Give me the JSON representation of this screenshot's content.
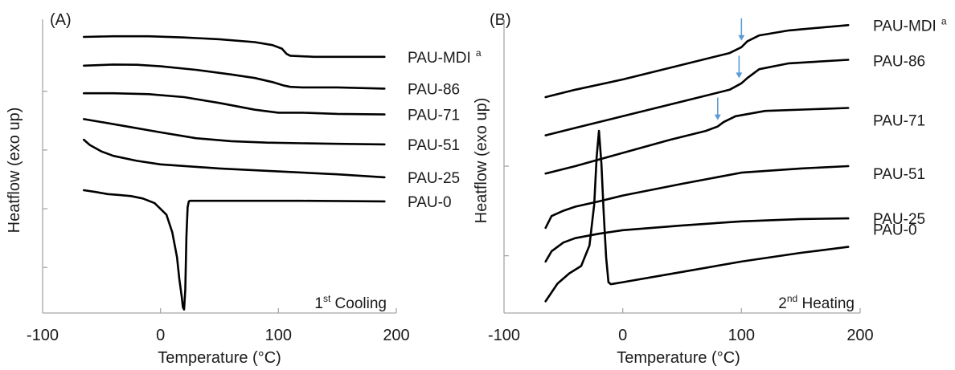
{
  "chart_data": [
    {
      "type": "line",
      "panel_label": "(A)",
      "xlabel": "Temperature (°C)",
      "ylabel": "Heatflow (exo up)",
      "xlim": [
        -100,
        200
      ],
      "xticks": [
        "-100",
        "0",
        "100",
        "200"
      ],
      "ylim": [
        0,
        10
      ],
      "y_ticks_unlabeled": [
        1.55,
        3.55,
        5.55,
        7.55
      ],
      "grid": false,
      "annotation": {
        "base": "1",
        "sup": "st",
        "rest": " Cooling"
      },
      "series": [
        {
          "name": "PAU-MDI",
          "superscript": "a",
          "x": [
            -65,
            -40,
            -10,
            20,
            50,
            80,
            95,
            103,
            107,
            110,
            130,
            150,
            190
          ],
          "y": [
            9.4,
            9.42,
            9.42,
            9.38,
            9.32,
            9.22,
            9.12,
            9.0,
            8.82,
            8.76,
            8.72,
            8.72,
            8.72
          ]
        },
        {
          "name": "PAU-86",
          "x": [
            -65,
            -40,
            -20,
            0,
            30,
            60,
            80,
            95,
            105,
            110,
            120,
            150,
            190
          ],
          "y": [
            8.42,
            8.46,
            8.45,
            8.4,
            8.28,
            8.12,
            8.0,
            7.86,
            7.74,
            7.7,
            7.68,
            7.68,
            7.64
          ]
        },
        {
          "name": "PAU-71",
          "x": [
            -65,
            -40,
            -10,
            20,
            50,
            80,
            100,
            120,
            150,
            190
          ],
          "y": [
            7.48,
            7.48,
            7.45,
            7.35,
            7.15,
            6.92,
            6.82,
            6.82,
            6.78,
            6.76
          ]
        },
        {
          "name": "PAU-51",
          "x": [
            -65,
            -50,
            -30,
            0,
            30,
            60,
            90,
            120,
            150,
            190
          ],
          "y": [
            6.6,
            6.5,
            6.36,
            6.15,
            5.95,
            5.85,
            5.8,
            5.78,
            5.76,
            5.74
          ]
        },
        {
          "name": "PAU-25",
          "x": [
            -65,
            -60,
            -50,
            -40,
            -20,
            0,
            50,
            100,
            150,
            190
          ],
          "y": [
            5.9,
            5.72,
            5.5,
            5.35,
            5.18,
            5.06,
            4.92,
            4.82,
            4.72,
            4.62
          ]
        },
        {
          "name": "PAU-0",
          "x": [
            -65,
            -55,
            -45,
            -35,
            -25,
            -15,
            -5,
            5,
            10,
            14,
            16,
            18,
            19,
            20,
            21,
            22,
            23,
            24,
            25,
            60,
            120,
            190
          ],
          "y": [
            4.18,
            4.12,
            4.05,
            4.02,
            3.98,
            3.9,
            3.74,
            3.35,
            2.75,
            1.9,
            1.15,
            0.55,
            0.2,
            0.12,
            0.8,
            2.6,
            3.6,
            3.8,
            3.82,
            3.82,
            3.82,
            3.8
          ]
        }
      ]
    },
    {
      "type": "line",
      "panel_label": "(B)",
      "xlabel": "Temperature (°C)",
      "ylabel": "Heatflow (exo up)",
      "xlim": [
        -100,
        200
      ],
      "xticks": [
        "-100",
        "0",
        "100",
        "200"
      ],
      "ylim": [
        0,
        10
      ],
      "y_ticks_unlabeled": [
        1.95,
        5.0
      ],
      "grid": false,
      "annotation": {
        "base": "2",
        "sup": "nd",
        "rest": " Heating"
      },
      "series": [
        {
          "name": "PAU-MDI",
          "superscript": "a",
          "x": [
            -65,
            -40,
            0,
            50,
            90,
            100,
            105,
            115,
            140,
            190
          ],
          "y": [
            7.35,
            7.6,
            7.95,
            8.45,
            8.85,
            9.05,
            9.25,
            9.45,
            9.62,
            9.8
          ]
        },
        {
          "name": "PAU-86",
          "x": [
            -65,
            -40,
            0,
            50,
            90,
            100,
            105,
            115,
            140,
            190
          ],
          "y": [
            6.05,
            6.3,
            6.7,
            7.2,
            7.6,
            7.82,
            8.0,
            8.3,
            8.5,
            8.62
          ]
        },
        {
          "name": "PAU-71",
          "x": [
            -65,
            -40,
            0,
            40,
            70,
            80,
            85,
            95,
            120,
            190
          ],
          "y": [
            4.75,
            5.0,
            5.45,
            5.9,
            6.2,
            6.35,
            6.5,
            6.7,
            6.88,
            6.98
          ]
        },
        {
          "name": "PAU-51",
          "x": [
            -65,
            -60,
            -50,
            -40,
            -20,
            0,
            50,
            100,
            150,
            190
          ],
          "y": [
            2.9,
            3.3,
            3.48,
            3.62,
            3.8,
            4.0,
            4.4,
            4.78,
            4.92,
            5.0
          ]
        },
        {
          "name": "PAU-25",
          "x": [
            -65,
            -60,
            -50,
            -40,
            -20,
            0,
            50,
            100,
            150,
            190
          ],
          "y": [
            1.75,
            2.1,
            2.4,
            2.55,
            2.7,
            2.82,
            2.98,
            3.12,
            3.2,
            3.22
          ]
        },
        {
          "name": "PAU-0",
          "x": [
            -65,
            -55,
            -45,
            -35,
            -28,
            -24,
            -22,
            -20,
            -18,
            -16,
            -14,
            -12,
            -10,
            0,
            50,
            100,
            150,
            190
          ],
          "y": [
            0.4,
            1.0,
            1.35,
            1.6,
            2.3,
            3.7,
            5.3,
            6.2,
            5.1,
            3.4,
            1.9,
            1.05,
            0.98,
            1.05,
            1.4,
            1.75,
            2.05,
            2.25
          ]
        }
      ],
      "arrows": [
        {
          "series": "PAU-MDI",
          "x": 100
        },
        {
          "series": "PAU-86",
          "x": 98
        },
        {
          "series": "PAU-71",
          "x": 80
        }
      ]
    }
  ]
}
